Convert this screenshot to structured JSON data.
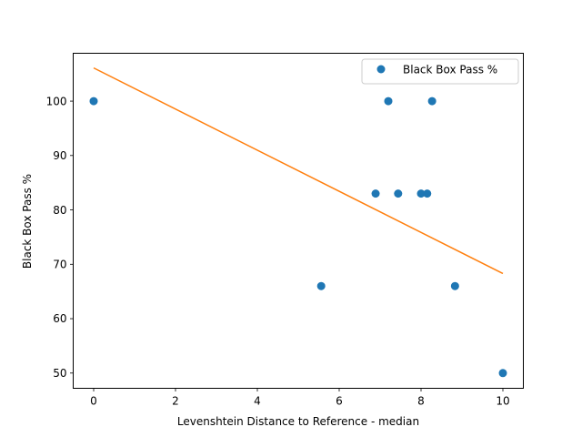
{
  "chart_data": {
    "type": "scatter",
    "xlabel": "Levenshtein Distance to Reference - median",
    "ylabel": "Black Box Pass %",
    "xlim": [
      -0.5,
      10.5
    ],
    "ylim": [
      47.2,
      108.8
    ],
    "xticks": [
      0,
      2,
      4,
      6,
      8,
      10
    ],
    "yticks": [
      50,
      60,
      70,
      80,
      90,
      100
    ],
    "grid": false,
    "legend_position": "upper right",
    "series": [
      {
        "name": "Black Box Pass %",
        "kind": "scatter",
        "color": "#1f77b4",
        "points": [
          {
            "x": 0,
            "y": 100
          },
          {
            "x": 5.56,
            "y": 66
          },
          {
            "x": 6.89,
            "y": 83
          },
          {
            "x": 7.2,
            "y": 100
          },
          {
            "x": 7.44,
            "y": 83
          },
          {
            "x": 8.0,
            "y": 83
          },
          {
            "x": 8.15,
            "y": 83
          },
          {
            "x": 8.27,
            "y": 100
          },
          {
            "x": 8.83,
            "y": 66
          },
          {
            "x": 10,
            "y": 50
          }
        ]
      },
      {
        "kind": "line",
        "color": "#ff7f0e",
        "points": [
          {
            "x": 0,
            "y": 106.1
          },
          {
            "x": 10,
            "y": 68.3
          }
        ]
      }
    ]
  }
}
